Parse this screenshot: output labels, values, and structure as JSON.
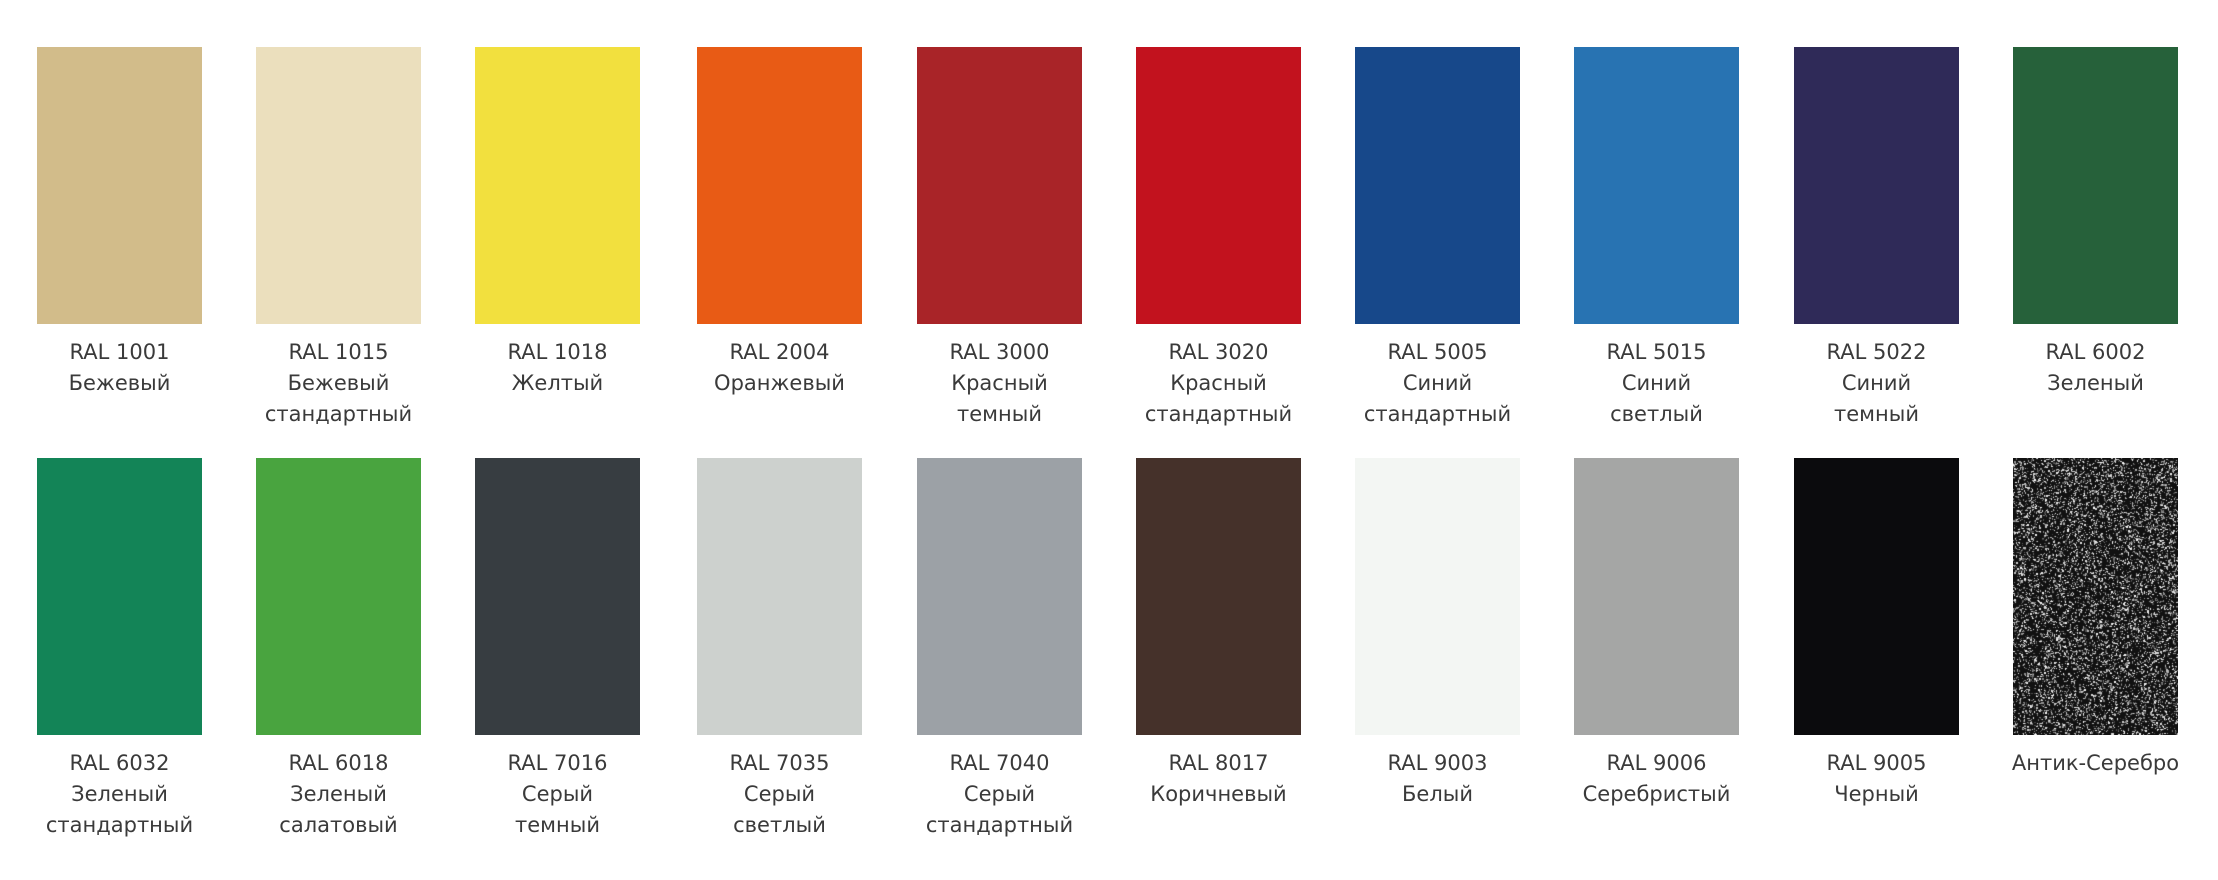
{
  "swatches": [
    {
      "code": "RAL 1001",
      "name": [
        "Бежевый"
      ],
      "color": "#d2bc8a"
    },
    {
      "code": "RAL 1015",
      "name": [
        "Бежевый",
        "стандартный"
      ],
      "color": "#ebdfbd"
    },
    {
      "code": "RAL 1018",
      "name": [
        "Желтый"
      ],
      "color": "#f2e03e"
    },
    {
      "code": "RAL 2004",
      "name": [
        "Оранжевый"
      ],
      "color": "#e85b15"
    },
    {
      "code": "RAL 3000",
      "name": [
        "Красный",
        "темный"
      ],
      "color": "#a92428"
    },
    {
      "code": "RAL 3020",
      "name": [
        "Красный",
        "стандартный"
      ],
      "color": "#c2121e"
    },
    {
      "code": "RAL 5005",
      "name": [
        "Синий",
        "стандартный"
      ],
      "color": "#17488a"
    },
    {
      "code": "RAL 5015",
      "name": [
        "Синий",
        "светлый"
      ],
      "color": "#2873b2"
    },
    {
      "code": "RAL 5022",
      "name": [
        "Синий",
        "темный"
      ],
      "color": "#2f2a58"
    },
    {
      "code": "RAL 6002",
      "name": [
        "Зеленый"
      ],
      "color": "#26613a"
    },
    {
      "code": "RAL 6032",
      "name": [
        "Зеленый",
        "стандартный"
      ],
      "color": "#138457"
    },
    {
      "code": "RAL 6018",
      "name": [
        "Зеленый",
        "салатовый"
      ],
      "color": "#49a43f"
    },
    {
      "code": "RAL 7016",
      "name": [
        "Серый",
        "темный"
      ],
      "color": "#373d41"
    },
    {
      "code": "RAL 7035",
      "name": [
        "Серый",
        "светлый"
      ],
      "color": "#cdd1ce"
    },
    {
      "code": "RAL 7040",
      "name": [
        "Серый",
        "стандартный"
      ],
      "color": "#9ca1a6"
    },
    {
      "code": "RAL 8017",
      "name": [
        "Коричневый"
      ],
      "color": "#45312a"
    },
    {
      "code": "RAL 9003",
      "name": [
        "Белый"
      ],
      "color": "#f3f6f3"
    },
    {
      "code": "RAL 9006",
      "name": [
        "Серебристый"
      ],
      "color": "#a5a6a5"
    },
    {
      "code": "RAL 9005",
      "name": [
        "Черный"
      ],
      "color": "#0b0b0d"
    },
    {
      "code": "",
      "name": [
        "Антик-Серебро"
      ],
      "color": "#1a1a1a",
      "texture": "speckled-silver"
    }
  ]
}
